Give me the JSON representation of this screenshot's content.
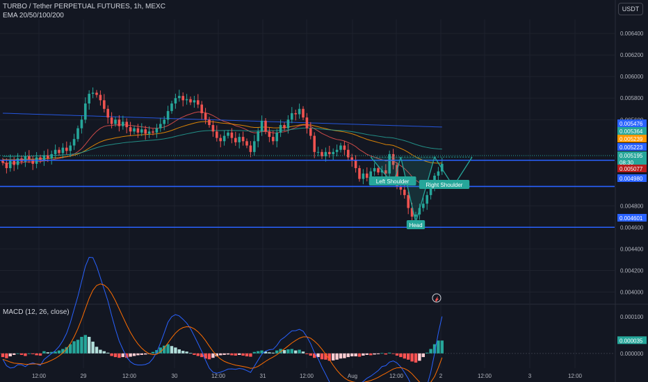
{
  "header": {
    "symbol_line": "TURBO / Tether PERPETUAL FUTURES, 1h, MEXC",
    "indicator_line": "EMA 20/50/100/200",
    "currency_button": "USDT"
  },
  "macd_panel": {
    "title": "MACD (12, 26, close)"
  },
  "colors": {
    "background": "#131722",
    "grid": "#1e222d",
    "up": "#26a69a",
    "down": "#ef5350",
    "hline": "#2962ff",
    "ema20": "#ef5350",
    "ema50": "#ff9800",
    "ema100": "#26a69a",
    "ema200": "#2962ff",
    "macd": "#2962ff",
    "signal": "#ff6d00",
    "pattern": "#26a69a"
  },
  "chart_data": [
    {
      "type": "candlestick",
      "title": "TURBO / Tether PERPETUAL FUTURES, 1h, MEXC",
      "ylim": [
        0.0039,
        0.00653
      ],
      "y_ticks": [
        "0.006400",
        "0.006200",
        "0.006000",
        "0.005800",
        "0.005600",
        "0.004800",
        "0.004600",
        "0.004400",
        "0.004200",
        "0.004000"
      ],
      "x_ticks": [
        "12:00",
        "29",
        "12:00",
        "30",
        "12:00",
        "31",
        "12:00",
        "Aug",
        "12:00",
        "2",
        "12:00",
        "3",
        "12:00"
      ],
      "closes": [
        0.0052,
        0.00515,
        0.00522,
        0.00518,
        0.00524,
        0.00521,
        0.00526,
        0.00523,
        0.00519,
        0.00525,
        0.00522,
        0.00527,
        0.00524,
        0.00528,
        0.00532,
        0.00529,
        0.00534,
        0.00531,
        0.00536,
        0.00542,
        0.00552,
        0.0056,
        0.00575,
        0.00584,
        0.00585,
        0.00583,
        0.00578,
        0.0057,
        0.00562,
        0.00556,
        0.0056,
        0.00554,
        0.00558,
        0.00553,
        0.00549,
        0.00552,
        0.00548,
        0.00551,
        0.00547,
        0.00549,
        0.00548,
        0.00552,
        0.00556,
        0.0056,
        0.00568,
        0.00575,
        0.0058,
        0.00582,
        0.00578,
        0.00579,
        0.00576,
        0.00578,
        0.00574,
        0.00566,
        0.0056,
        0.00555,
        0.00549,
        0.00543,
        0.0054,
        0.00545,
        0.00548,
        0.00543,
        0.00539,
        0.00544,
        0.0054,
        0.00536,
        0.0053,
        0.0054,
        0.00549,
        0.00559,
        0.00549,
        0.00544,
        0.0054,
        0.00548,
        0.00555,
        0.00552,
        0.0056,
        0.00566,
        0.00565,
        0.0057,
        0.00562,
        0.00552,
        0.00545,
        0.0053,
        0.0053,
        0.00526,
        0.0053,
        0.00528,
        0.0053,
        0.00532,
        0.00536,
        0.00532,
        0.00525,
        0.00522,
        0.00515,
        0.00505,
        0.0051,
        0.00506,
        0.00512,
        0.00515,
        0.00511,
        0.00513,
        0.0051,
        0.00528,
        0.00518,
        0.00498,
        0.00495,
        0.0049,
        0.00478,
        0.0047,
        0.00472,
        0.00478,
        0.00482,
        0.0049,
        0.00496,
        0.00508,
        0.00512,
        0.00519
      ],
      "price_labels": {
        "ema200": "0.005476",
        "ema100": "0.005364",
        "ema50": "0.005239",
        "hline_upper": "0.005223",
        "last_price": "0.005195",
        "countdown": "08:30",
        "ema20": "0.005077",
        "hline_middle": "0.004980",
        "hline_lower": "0.004601"
      },
      "horizontal_lines": [
        0.005223,
        0.00498,
        0.004601
      ],
      "pattern_labels": {
        "left_shoulder": "Left Shoulder",
        "head": "Head",
        "right_shoulder": "Right Shoulder"
      }
    },
    {
      "type": "bar",
      "title": "MACD (12, 26, close)",
      "ylim": [
        -4e-05,
        0.00013
      ],
      "y_ticks": [
        "0.000100",
        "0.000000"
      ],
      "last_value_label": "0.000035",
      "histogram": [
        -1e-05,
        -1.3e-05,
        -8e-06,
        -4e-06,
        0,
        -4e-06,
        -7e-06,
        0,
        -2e-06,
        -5e-06,
        -6e-06,
        6e-06,
        3e-06,
        4e-06,
        5e-06,
        8e-06,
        1.2e-05,
        1.7e-05,
        2.5e-05,
        3.3e-05,
        3.7e-05,
        4.5e-05,
        5e-05,
        4.5e-05,
        3.2e-05,
        1.8e-05,
        1e-05,
        6e-06,
        2e-06,
        -7e-06,
        -1e-05,
        -1.2e-05,
        -1e-05,
        -1.2e-05,
        -9e-06,
        -7e-06,
        -5e-06,
        -4e-06,
        -3e-06,
        -1e-06,
        4e-06,
        9e-06,
        1.6e-05,
        2.1e-05,
        2.5e-05,
        2e-05,
        1.6e-05,
        1.1e-05,
        7e-06,
        5e-06,
        1e-06,
        -4e-06,
        -7e-06,
        -1e-05,
        -1.4e-05,
        -1.6e-05,
        -1.2e-05,
        -8e-06,
        -5e-06,
        -4e-06,
        -3e-06,
        -5e-06,
        -6e-06,
        -4e-06,
        -6e-06,
        -8e-06,
        -9e-06,
        4e-06,
        6e-06,
        8e-06,
        5e-06,
        3e-06,
        2e-06,
        8e-06,
        1.2e-05,
        9e-06,
        1.1e-05,
        1.2e-05,
        8e-06,
        1e-05,
        5e-06,
        -2e-06,
        -6e-06,
        -1.2e-05,
        -1e-05,
        -1.6e-05,
        -1.7e-05,
        -2e-05,
        -1.9e-05,
        -1.7e-05,
        -1.4e-05,
        -1.3e-05,
        -1e-05,
        -8e-06,
        -8e-06,
        -9e-06,
        -6e-06,
        -4e-06,
        -5e-06,
        -3e-06,
        -2e-06,
        1e-06,
        -3e-06,
        2e-06,
        -1e-06,
        -6e-06,
        -1e-05,
        -1.4e-05,
        -1.7e-05,
        -2.2e-05,
        -2.5e-05,
        -2e-05,
        -1e-05,
        2e-06,
        1.2e-05,
        2.5e-05,
        3.5e-05,
        3.5e-05
      ]
    }
  ]
}
